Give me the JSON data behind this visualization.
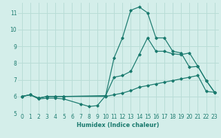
{
  "xlabel": "Humidex (Indice chaleur)",
  "bg_color": "#d4eeea",
  "grid_color": "#b8dcd6",
  "line_color": "#1a7a6e",
  "xlim": [
    -0.5,
    23.5
  ],
  "ylim": [
    5.0,
    11.6
  ],
  "xticks": [
    0,
    1,
    2,
    3,
    4,
    5,
    6,
    7,
    8,
    9,
    10,
    11,
    12,
    13,
    14,
    15,
    16,
    17,
    18,
    19,
    20,
    21,
    22,
    23
  ],
  "yticks": [
    5,
    6,
    7,
    8,
    9,
    10,
    11
  ],
  "lines": [
    {
      "x": [
        0,
        1,
        2,
        3,
        4,
        5,
        7,
        8,
        9,
        10,
        11,
        12,
        13,
        14,
        15,
        16,
        17,
        18,
        19,
        20,
        21,
        22,
        23
      ],
      "y": [
        6.0,
        6.1,
        5.85,
        5.9,
        5.9,
        5.85,
        5.55,
        5.4,
        5.45,
        6.05,
        8.3,
        9.5,
        11.15,
        11.35,
        11.0,
        9.5,
        9.5,
        8.7,
        8.6,
        7.75,
        7.8,
        6.95,
        6.25
      ]
    },
    {
      "x": [
        0,
        1,
        2,
        3,
        4,
        5,
        10,
        11,
        12,
        13,
        14,
        15,
        16,
        17,
        18,
        19,
        20,
        21,
        22,
        23
      ],
      "y": [
        6.0,
        6.1,
        5.9,
        6.0,
        6.0,
        6.0,
        6.0,
        6.1,
        6.2,
        6.35,
        6.55,
        6.65,
        6.75,
        6.85,
        6.95,
        7.05,
        7.15,
        7.25,
        6.3,
        6.25
      ]
    },
    {
      "x": [
        0,
        1,
        2,
        3,
        4,
        5,
        10,
        11,
        12,
        13,
        14,
        15,
        16,
        17,
        18,
        19,
        20,
        21,
        22,
        23
      ],
      "y": [
        6.0,
        6.1,
        5.9,
        6.0,
        6.0,
        6.0,
        6.05,
        7.15,
        7.25,
        7.5,
        8.5,
        9.5,
        8.7,
        8.7,
        8.55,
        8.5,
        8.6,
        7.8,
        6.95,
        6.25
      ]
    }
  ]
}
